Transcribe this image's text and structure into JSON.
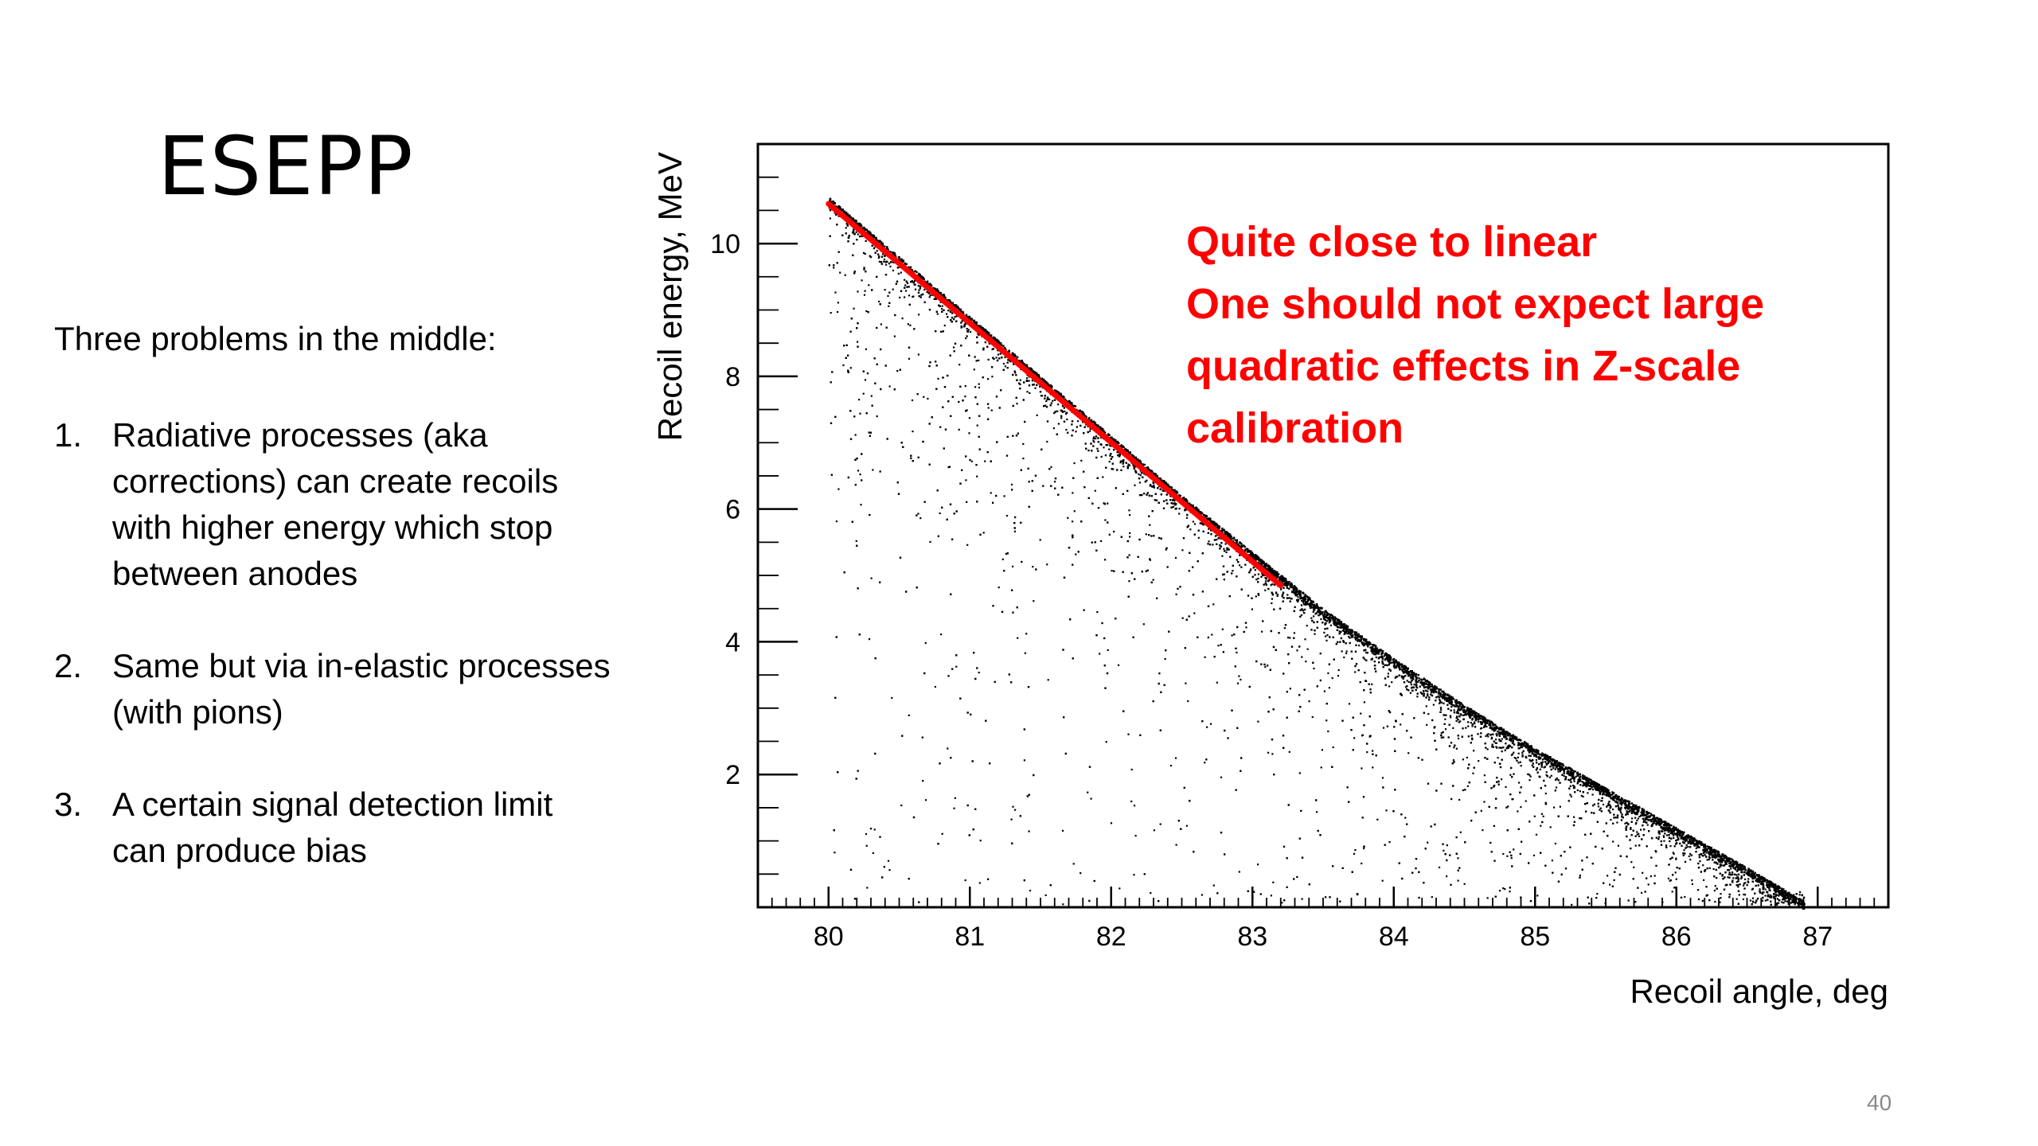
{
  "slide": {
    "title": "ESEPP",
    "intro": "Three problems in the middle:",
    "problems": [
      {
        "num": "1.",
        "text": "Radiative processes (aka corrections) can create recoils with higher energy which stop between anodes"
      },
      {
        "num": "2.",
        "text": "Same but via in-elastic processes (with pions)"
      },
      {
        "num": "3.",
        "text": "A certain signal detection limit can produce bias"
      }
    ],
    "page_number": "40"
  },
  "chart_data": {
    "type": "scatter",
    "xlabel": "Recoil angle, deg",
    "ylabel": "Recoil energy, MeV",
    "xlim": [
      79.5,
      87.5
    ],
    "ylim": [
      0,
      11.5
    ],
    "xticks": [
      "80",
      "81",
      "82",
      "83",
      "84",
      "85",
      "86",
      "87"
    ],
    "yticks": [
      "2",
      "4",
      "6",
      "8",
      "10"
    ],
    "edge_curve": {
      "x": [
        80.0,
        80.5,
        81.0,
        81.5,
        82.0,
        82.5,
        83.0,
        83.5,
        84.0,
        84.5,
        85.0,
        85.5,
        86.0,
        86.5,
        86.9
      ],
      "y": [
        10.7,
        9.8,
        8.9,
        8.0,
        7.1,
        6.2,
        5.35,
        4.5,
        3.75,
        3.05,
        2.4,
        1.8,
        1.2,
        0.6,
        0.1
      ]
    },
    "linear_fit": {
      "x": [
        80.0,
        83.2
      ],
      "y": [
        10.6,
        4.85
      ],
      "color": "#ff0000"
    },
    "point_color": "#000000",
    "annotation": {
      "lines": [
        "Quite close to linear",
        "One should not expect large",
        "quadratic effects in Z-scale",
        "calibration"
      ],
      "color": "#ff0000"
    }
  }
}
